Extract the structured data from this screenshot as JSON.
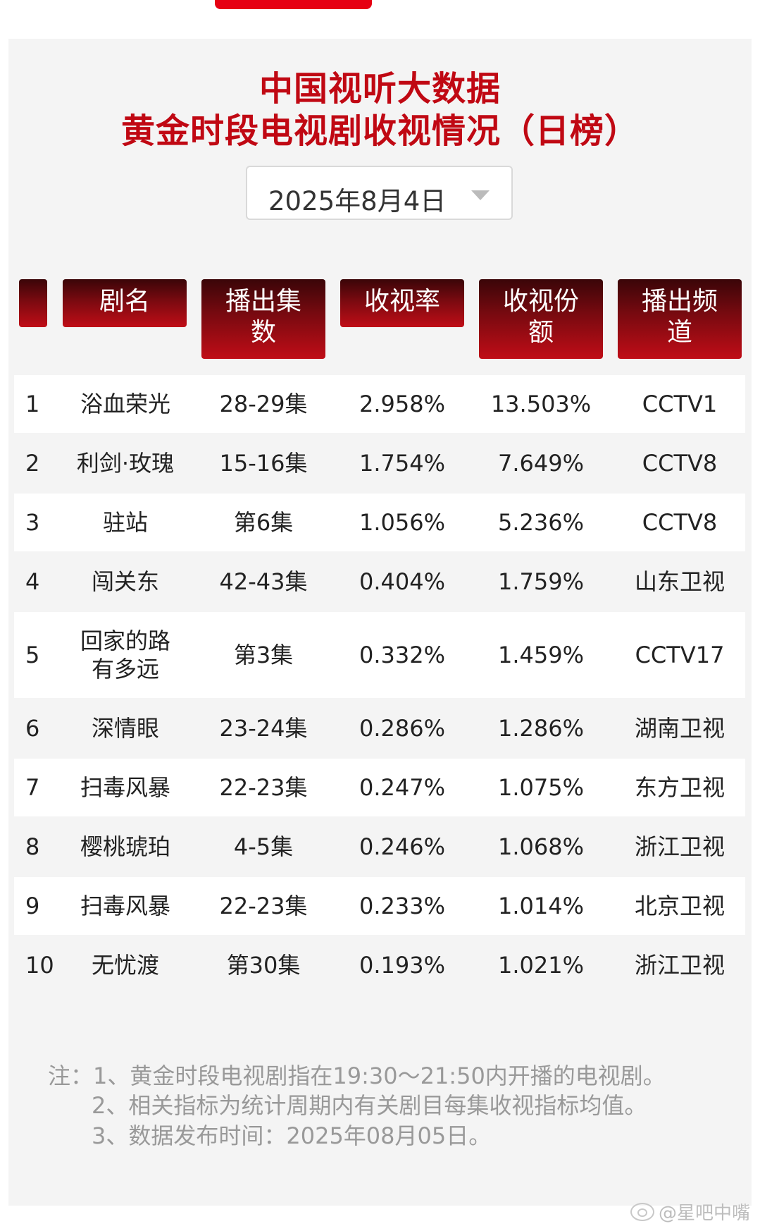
{
  "title_line1": "中国视听大数据",
  "title_line2": "黄金时段电视剧收视情况（日榜）",
  "date_selector": {
    "value": "2025年8月4日"
  },
  "headers": [
    "",
    "剧名",
    "播出集数",
    "收视率",
    "收视份额",
    "播出频道"
  ],
  "header_display": [
    "",
    "剧名",
    "播出集\n数",
    "收视率",
    "收视份\n额",
    "播出频\n道"
  ],
  "rows": [
    {
      "rank": "1",
      "name": "浴血荣光",
      "episodes": "28-29集",
      "rating": "2.958%",
      "share": "13.503%",
      "channel": "CCTV1"
    },
    {
      "rank": "2",
      "name": "利剑·玫瑰",
      "episodes": "15-16集",
      "rating": "1.754%",
      "share": "7.649%",
      "channel": "CCTV8"
    },
    {
      "rank": "3",
      "name": "驻站",
      "episodes": "第6集",
      "rating": "1.056%",
      "share": "5.236%",
      "channel": "CCTV8"
    },
    {
      "rank": "4",
      "name": "闯关东",
      "episodes": "42-43集",
      "rating": "0.404%",
      "share": "1.759%",
      "channel": "山东卫视"
    },
    {
      "rank": "5",
      "name": "回家的路有多远",
      "episodes": "第3集",
      "rating": "0.332%",
      "share": "1.459%",
      "channel": "CCTV17"
    },
    {
      "rank": "6",
      "name": "深情眼",
      "episodes": "23-24集",
      "rating": "0.286%",
      "share": "1.286%",
      "channel": "湖南卫视"
    },
    {
      "rank": "7",
      "name": "扫毒风暴",
      "episodes": "22-23集",
      "rating": "0.247%",
      "share": "1.075%",
      "channel": "东方卫视"
    },
    {
      "rank": "8",
      "name": "樱桃琥珀",
      "episodes": "4-5集",
      "rating": "0.246%",
      "share": "1.068%",
      "channel": "浙江卫视"
    },
    {
      "rank": "9",
      "name": "扫毒风暴",
      "episodes": "22-23集",
      "rating": "0.233%",
      "share": "1.014%",
      "channel": "北京卫视"
    },
    {
      "rank": "10",
      "name": "无忧渡",
      "episodes": "第30集",
      "rating": "0.193%",
      "share": "1.021%",
      "channel": "浙江卫视"
    }
  ],
  "notes": {
    "line1": "注：1、黄金时段电视剧指在19:30～21:50内开播的电视剧。",
    "line2": "2、相关指标为统计周期内有关剧目每集收视指标均值。",
    "line3": "3、数据发布时间：2025年08月05日。"
  },
  "watermark": "@星吧中嘴",
  "colors": {
    "accent": "#c00813",
    "header_dark": "#3a0508",
    "header_red": "#c00d17",
    "card_bg": "#f4f4f4"
  }
}
